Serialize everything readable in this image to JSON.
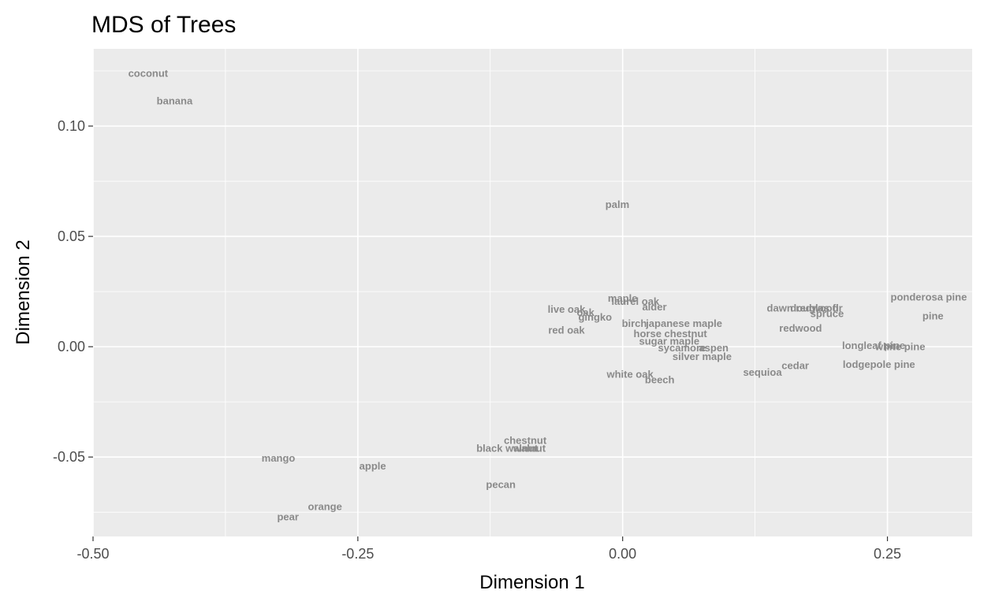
{
  "chart_data": {
    "type": "scatter",
    "title": "MDS of Trees",
    "xlabel": "Dimension 1",
    "ylabel": "Dimension 2",
    "xlim": [
      -0.5,
      0.33
    ],
    "ylim": [
      -0.086,
      0.135
    ],
    "x_ticks": [
      -0.5,
      -0.25,
      0.0,
      0.25
    ],
    "x_tick_labels": [
      "-0.50",
      "-0.25",
      "0.00",
      "0.25"
    ],
    "y_ticks": [
      -0.05,
      0.0,
      0.05,
      0.1
    ],
    "y_tick_labels": [
      "-0.05",
      "0.00",
      "0.05",
      "0.10"
    ],
    "grid": true,
    "points": [
      {
        "label": "coconut",
        "x": -0.448,
        "y": 0.124
      },
      {
        "label": "banana",
        "x": -0.423,
        "y": 0.1115
      },
      {
        "label": "palm",
        "x": -0.005,
        "y": 0.0645
      },
      {
        "label": "maple",
        "x": 0.0,
        "y": 0.022
      },
      {
        "label": "laurel oak",
        "x": 0.012,
        "y": 0.0205
      },
      {
        "label": "alder",
        "x": 0.03,
        "y": 0.018
      },
      {
        "label": "live oak",
        "x": -0.053,
        "y": 0.017
      },
      {
        "label": "oak",
        "x": -0.035,
        "y": 0.0155
      },
      {
        "label": "gingko",
        "x": -0.026,
        "y": 0.0135
      },
      {
        "label": "birch",
        "x": 0.011,
        "y": 0.0105
      },
      {
        "label": "japanese maple",
        "x": 0.058,
        "y": 0.0105
      },
      {
        "label": "red oak",
        "x": -0.053,
        "y": 0.0075
      },
      {
        "label": "horse chestnut",
        "x": 0.045,
        "y": 0.006
      },
      {
        "label": "sugar maple",
        "x": 0.044,
        "y": 0.0025
      },
      {
        "label": "sycamore",
        "x": 0.056,
        "y": -0.0005
      },
      {
        "label": "aspen",
        "x": 0.086,
        "y": -0.0005
      },
      {
        "label": "silver maple",
        "x": 0.075,
        "y": -0.0045
      },
      {
        "label": "white oak",
        "x": 0.007,
        "y": -0.0125
      },
      {
        "label": "beech",
        "x": 0.035,
        "y": -0.015
      },
      {
        "label": "dawn redwood",
        "x": 0.17,
        "y": 0.0175
      },
      {
        "label": "douglas fir",
        "x": 0.183,
        "y": 0.0175
      },
      {
        "label": "spruce",
        "x": 0.193,
        "y": 0.015
      },
      {
        "label": "redwood",
        "x": 0.168,
        "y": 0.0085
      },
      {
        "label": "ponderosa pine",
        "x": 0.289,
        "y": 0.0225
      },
      {
        "label": "pine",
        "x": 0.293,
        "y": 0.014
      },
      {
        "label": "longleaf pine",
        "x": 0.237,
        "y": 0.0005
      },
      {
        "label": "white pine",
        "x": 0.262,
        "y": 0.0
      },
      {
        "label": "lodgepole pine",
        "x": 0.242,
        "y": -0.008
      },
      {
        "label": "cedar",
        "x": 0.163,
        "y": -0.0085
      },
      {
        "label": "sequioa",
        "x": 0.132,
        "y": -0.0115
      },
      {
        "label": "chestnut",
        "x": -0.092,
        "y": -0.0425
      },
      {
        "label": "black walnut",
        "x": -0.109,
        "y": -0.046
      },
      {
        "label": "walnut",
        "x": -0.088,
        "y": -0.046
      },
      {
        "label": "mango",
        "x": -0.325,
        "y": -0.0505
      },
      {
        "label": "apple",
        "x": -0.236,
        "y": -0.054
      },
      {
        "label": "pecan",
        "x": -0.115,
        "y": -0.0625
      },
      {
        "label": "orange",
        "x": -0.281,
        "y": -0.0725
      },
      {
        "label": "pear",
        "x": -0.316,
        "y": -0.077
      }
    ]
  }
}
